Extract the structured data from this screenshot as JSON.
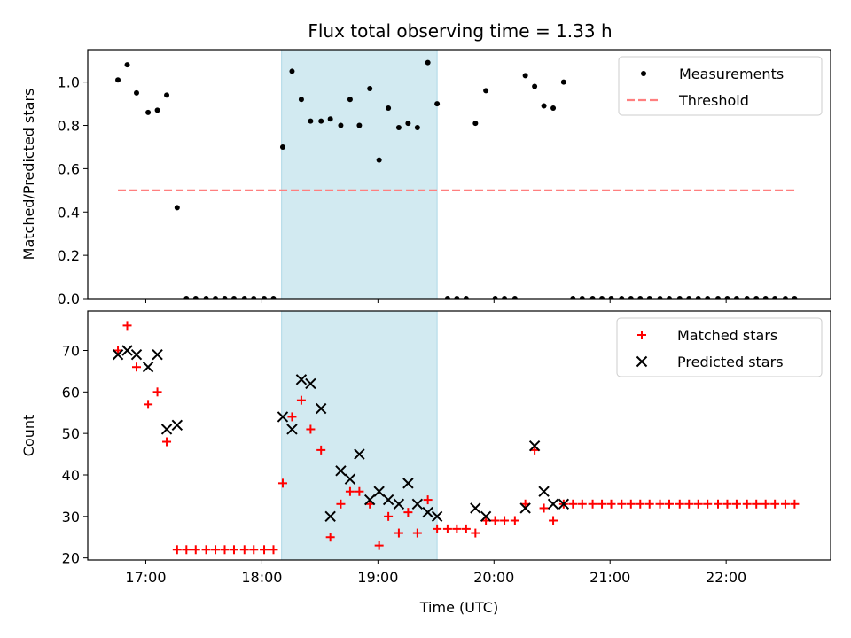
{
  "title": "Flux total observing time = 1.33 h",
  "colors": {
    "measurement": "#000000",
    "threshold": "#ff7f7f",
    "matched": "#ff0000",
    "predicted": "#000000",
    "shade": "#add8e6"
  },
  "chart_data": [
    {
      "type": "scatter",
      "ylabel": "Matched/Predicted stars",
      "xlabel": "",
      "xlim": [
        16.5,
        22.9
      ],
      "ylim": [
        0,
        1.15
      ],
      "yticks": [
        0.0,
        0.2,
        0.4,
        0.6,
        0.8,
        1.0
      ],
      "ytick_labels": [
        "0.0",
        "0.2",
        "0.4",
        "0.6",
        "0.8",
        "1.0"
      ],
      "shaded_interval": [
        18.17,
        19.51
      ],
      "legend": {
        "placement": "top-right",
        "entries": [
          "Measurements",
          "Threshold"
        ]
      },
      "threshold": {
        "name": "Threshold",
        "y": 0.5,
        "x_range": [
          16.76,
          22.59
        ]
      },
      "series": [
        {
          "name": "Measurements",
          "x": [
            16.76,
            16.84,
            16.92,
            17.02,
            17.1,
            17.18,
            17.27,
            17.35,
            17.43,
            17.52,
            17.6,
            17.68,
            17.76,
            17.85,
            17.93,
            18.02,
            18.1,
            18.18,
            18.26,
            18.34,
            18.42,
            18.51,
            18.59,
            18.68,
            18.76,
            18.84,
            18.93,
            19.01,
            19.09,
            19.18,
            19.26,
            19.34,
            19.43,
            19.51,
            19.6,
            19.68,
            19.76,
            19.84,
            19.93,
            20.01,
            20.09,
            20.18,
            20.27,
            20.35,
            20.43,
            20.51,
            20.6,
            20.68,
            20.76,
            20.85,
            20.93,
            21.01,
            21.1,
            21.18,
            21.26,
            21.34,
            21.43,
            21.51,
            21.6,
            21.68,
            21.76,
            21.84,
            21.93,
            22.01,
            22.09,
            22.18,
            22.26,
            22.34,
            22.42,
            22.51,
            22.59
          ],
          "y": [
            1.01,
            1.08,
            0.95,
            0.86,
            0.87,
            0.94,
            0.42,
            0,
            0,
            0,
            0,
            0,
            0,
            0,
            0,
            0,
            0,
            0.7,
            1.05,
            0.92,
            0.82,
            0.82,
            0.83,
            0.8,
            0.92,
            0.8,
            0.97,
            0.64,
            0.88,
            0.79,
            0.81,
            0.79,
            1.09,
            0.9,
            0,
            0,
            0,
            0.81,
            0.96,
            0,
            0,
            0,
            1.03,
            0.98,
            0.89,
            0.88,
            1.0,
            0,
            0,
            0,
            0,
            0,
            0,
            0,
            0,
            0,
            0,
            0,
            0,
            0,
            0,
            0,
            0,
            0,
            0,
            0,
            0,
            0,
            0,
            0,
            0
          ]
        }
      ]
    },
    {
      "type": "scatter",
      "ylabel": "Count",
      "xlabel": "Time (UTC)",
      "xlim": [
        16.5,
        22.9
      ],
      "ylim": [
        19.5,
        79.5
      ],
      "yticks": [
        20,
        30,
        40,
        50,
        60,
        70
      ],
      "ytick_labels": [
        "20",
        "30",
        "40",
        "50",
        "60",
        "70"
      ],
      "xticks": [
        17,
        18,
        19,
        20,
        21,
        22
      ],
      "xtick_labels": [
        "17:00",
        "18:00",
        "19:00",
        "20:00",
        "21:00",
        "22:00"
      ],
      "shaded_interval": [
        18.17,
        19.51
      ],
      "legend": {
        "placement": "top-right",
        "entries": [
          "Matched stars",
          "Predicted stars"
        ]
      },
      "series": [
        {
          "name": "Matched stars",
          "marker": "plus",
          "x": [
            16.76,
            16.84,
            16.92,
            17.02,
            17.1,
            17.18,
            17.27,
            17.35,
            17.43,
            17.52,
            17.6,
            17.68,
            17.76,
            17.85,
            17.93,
            18.02,
            18.1,
            18.18,
            18.26,
            18.34,
            18.42,
            18.51,
            18.59,
            18.68,
            18.76,
            18.84,
            18.93,
            19.01,
            19.09,
            19.18,
            19.26,
            19.34,
            19.43,
            19.51,
            19.6,
            19.68,
            19.76,
            19.84,
            19.93,
            20.01,
            20.09,
            20.18,
            20.27,
            20.35,
            20.43,
            20.51,
            20.6,
            20.68,
            20.76,
            20.85,
            20.93,
            21.01,
            21.1,
            21.18,
            21.26,
            21.34,
            21.43,
            21.51,
            21.6,
            21.68,
            21.76,
            21.84,
            21.93,
            22.01,
            22.09,
            22.18,
            22.26,
            22.34,
            22.42,
            22.51,
            22.59
          ],
          "y": [
            70,
            76,
            66,
            57,
            60,
            48,
            22,
            22,
            22,
            22,
            22,
            22,
            22,
            22,
            22,
            22,
            22,
            38,
            54,
            58,
            51,
            46,
            25,
            33,
            36,
            36,
            33,
            23,
            30,
            26,
            31,
            26,
            34,
            27,
            27,
            27,
            27,
            26,
            29,
            29,
            29,
            29,
            33,
            46,
            32,
            29,
            33,
            33,
            33,
            33,
            33,
            33,
            33,
            33,
            33,
            33,
            33,
            33,
            33,
            33,
            33,
            33,
            33,
            33,
            33,
            33,
            33,
            33,
            33,
            33,
            33
          ]
        },
        {
          "name": "Predicted stars",
          "marker": "x",
          "x": [
            16.76,
            16.84,
            16.92,
            17.02,
            17.1,
            17.18,
            17.27,
            18.18,
            18.26,
            18.34,
            18.42,
            18.51,
            18.59,
            18.68,
            18.76,
            18.84,
            18.93,
            19.01,
            19.09,
            19.18,
            19.26,
            19.34,
            19.43,
            19.51,
            19.84,
            19.93,
            20.27,
            20.35,
            20.43,
            20.51,
            20.6
          ],
          "y": [
            69,
            70,
            69,
            66,
            69,
            51,
            52,
            54,
            51,
            63,
            62,
            56,
            30,
            41,
            39,
            45,
            34,
            36,
            34,
            33,
            38,
            33,
            31,
            30,
            32,
            30,
            32,
            47,
            36,
            33,
            33
          ]
        }
      ]
    }
  ]
}
